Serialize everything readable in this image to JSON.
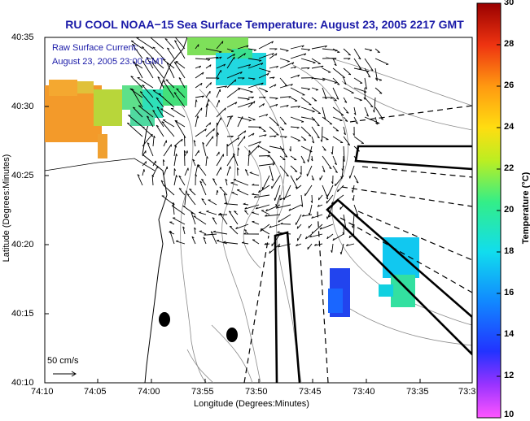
{
  "header": {
    "title": "RU COOL  NOAA−15  Sea Surface Temperature:  August 23, 2005 2217 GMT"
  },
  "overlay": {
    "current_label_line1": "Raw Surface Current:",
    "current_label_line2": "August 23, 2005 23:00 GMT",
    "scale_label": "50 cm/s"
  },
  "axes": {
    "x_title": "Longitude (Degrees:Minutes)",
    "y_title": "Latitude (Degrees:Minutes)",
    "x_ticks": [
      "74:10",
      "74:05",
      "74:00",
      "73:55",
      "73:50",
      "73:45",
      "73:40",
      "73:35",
      "73:3"
    ],
    "y_ticks": [
      "40:35",
      "40:30",
      "40:25",
      "40:20",
      "40:15",
      "40:10"
    ]
  },
  "colorbar": {
    "title": "Temperature (°C)",
    "ticks": [
      "30",
      "28",
      "26",
      "24",
      "22",
      "20",
      "18",
      "16",
      "14",
      "12",
      "10"
    ],
    "range": [
      10,
      30
    ]
  },
  "colors": {
    "title": "#1a1aa8",
    "land": "#ffffff",
    "bathymetry": "#8a8a8a",
    "coast": "#000000"
  }
}
